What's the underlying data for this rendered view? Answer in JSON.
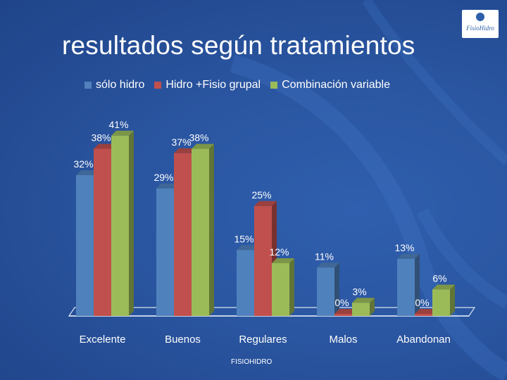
{
  "slide": {
    "title": "resultados según tratamientos",
    "footer": "FISIOHIDRO",
    "logo_text": "FisioHidro"
  },
  "colors": {
    "background": "#2a55a0",
    "text": "#ffffff"
  },
  "chart_data": {
    "type": "bar",
    "title": "",
    "xlabel": "",
    "ylabel": "",
    "ylim": [
      0,
      45
    ],
    "grid": false,
    "legend_position": "top",
    "categories": [
      "Excelente",
      "Buenos",
      "Regulares",
      "Malos",
      "Abandonan"
    ],
    "series": [
      {
        "name": "sólo hidro",
        "color": "#4f81bd",
        "values": [
          32,
          29,
          15,
          11,
          13
        ],
        "labels": [
          "32%",
          "29%",
          "15%",
          "11%",
          "13%"
        ]
      },
      {
        "name": "Hidro +Fisio grupal",
        "color": "#c0504d",
        "values": [
          38,
          37,
          25,
          0,
          0
        ],
        "labels": [
          "38%",
          "37%",
          "25%",
          "0%",
          "0%"
        ]
      },
      {
        "name": "Combinación variable",
        "color": "#9bbb59",
        "values": [
          41,
          38,
          12,
          3,
          6
        ],
        "labels": [
          "41%",
          "38%",
          "12%",
          "3%",
          "6%"
        ]
      }
    ]
  }
}
